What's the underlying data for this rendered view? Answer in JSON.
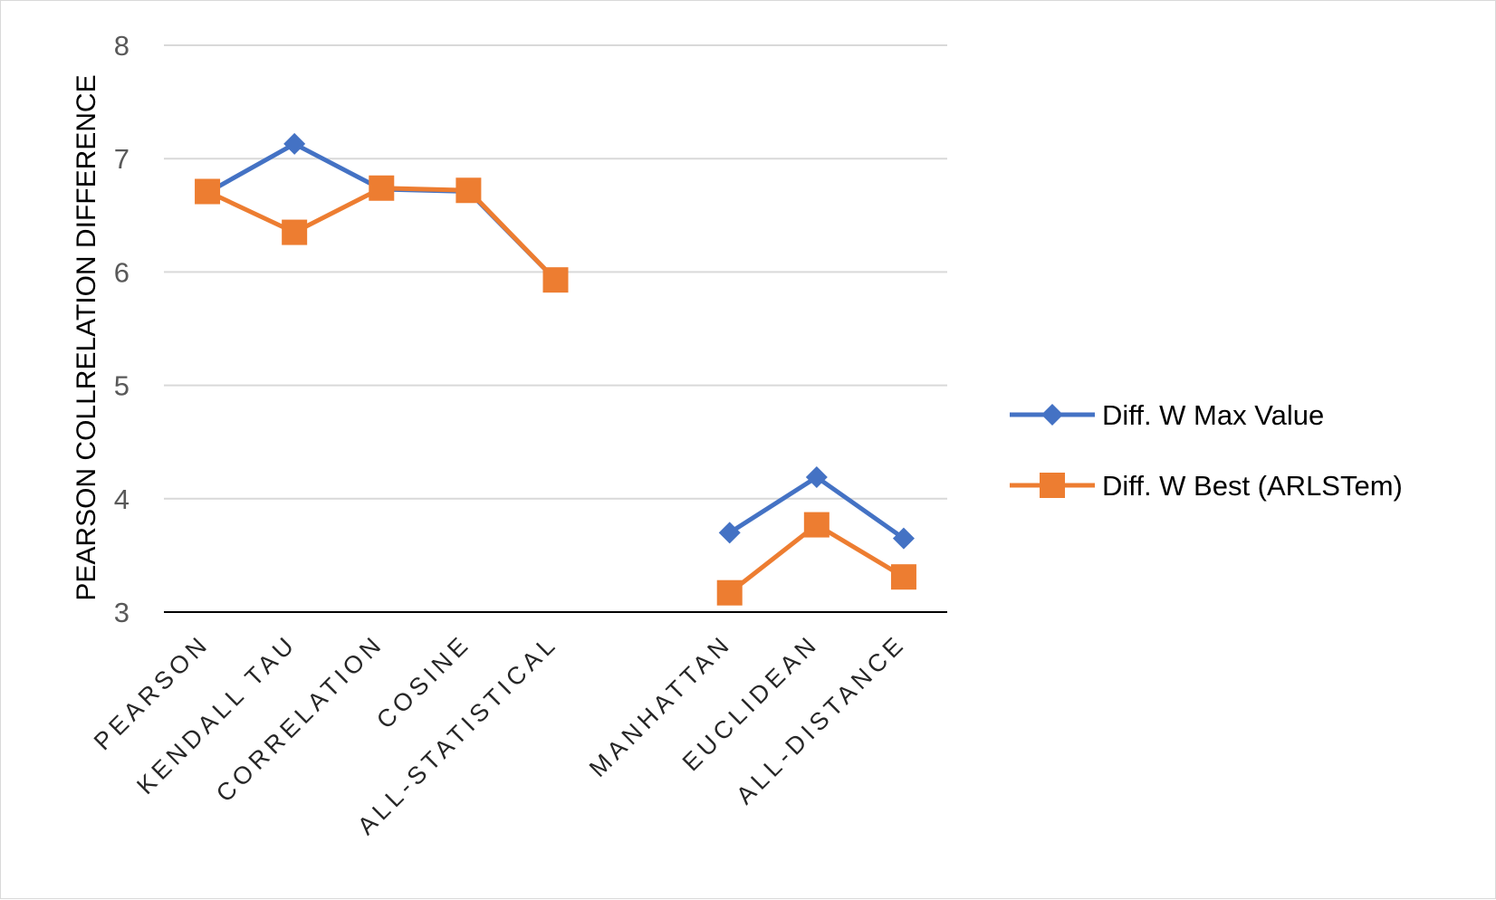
{
  "chart_data": {
    "type": "line",
    "title": "",
    "xlabel": "",
    "ylabel": "PEARSON COLLRELATION DIFFERENCE",
    "ylim": [
      3,
      8
    ],
    "yticks": [
      3,
      4,
      5,
      6,
      7,
      8
    ],
    "ytick_labels": [
      "3",
      "4",
      "5",
      "6",
      "7",
      "8"
    ],
    "grid": "horizontal",
    "legend_position": "right",
    "categories": [
      "PEARSON",
      "KENDALL TAU",
      "CORRELATION",
      "COSINE",
      "ALL-STATISTICAL",
      "",
      "MANHATTAN",
      "EUCLIDEAN",
      "ALL-DISTANCE"
    ],
    "series": [
      {
        "name": "Diff. W Max Value",
        "color": "#4472C4",
        "marker": "diamond",
        "values": [
          6.7,
          7.13,
          6.73,
          6.71,
          5.93,
          null,
          3.7,
          4.19,
          3.65
        ]
      },
      {
        "name": "Diff. W Best (ARLSTem)",
        "color": "#ED7D31",
        "marker": "square",
        "values": [
          6.71,
          6.35,
          6.74,
          6.72,
          5.93,
          null,
          3.17,
          3.77,
          3.31
        ]
      }
    ]
  }
}
